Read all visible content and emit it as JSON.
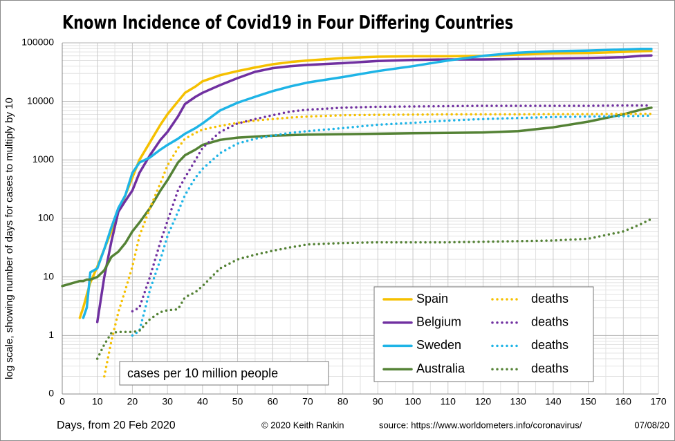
{
  "chart_data": {
    "type": "line",
    "title": "Known Incidence of Covid19 in Four Differing Countries",
    "y_label": "log scale, showing number of days for cases to multiply by 10",
    "x_label": "Days, from 20 Feb 2020",
    "annotation": "cases per 10 million people",
    "credit": "© 2020  Keith Rankin",
    "source": "source:  https://www.worldometers.info/coronavirus/",
    "date": "07/08/20",
    "log_y": true,
    "grid": true,
    "legend": "lower right",
    "xlim": [
      0,
      170
    ],
    "xticks": [
      0,
      10,
      20,
      30,
      40,
      50,
      60,
      70,
      80,
      90,
      100,
      110,
      120,
      130,
      140,
      150,
      160,
      170
    ],
    "ylim": [
      0.1,
      100000
    ],
    "yticks": [
      {
        "value": 0.1,
        "label": "0"
      },
      1,
      10,
      100,
      1000,
      10000,
      100000
    ],
    "x": [
      0,
      5,
      6,
      7,
      8,
      10,
      12,
      14,
      16,
      18,
      20,
      22,
      25,
      28,
      30,
      33,
      35,
      38,
      40,
      45,
      50,
      55,
      60,
      65,
      70,
      80,
      90,
      100,
      110,
      120,
      130,
      140,
      150,
      160,
      165,
      168
    ],
    "series": [
      {
        "name": "Spain",
        "color": "#f5c000",
        "dash": "solid",
        "values": [
          null,
          2,
          3,
          5,
          8,
          15,
          30,
          60,
          130,
          250,
          500,
          1000,
          2000,
          4000,
          6000,
          10000,
          14000,
          18000,
          22000,
          28000,
          33000,
          38000,
          43000,
          47000,
          50000,
          55000,
          58000,
          59000,
          59000,
          60000,
          63000,
          66000,
          67000,
          70000,
          72000,
          73000
        ]
      },
      {
        "name": "Belgium",
        "color": "#7030a0",
        "dash": "solid",
        "values": [
          null,
          null,
          null,
          null,
          null,
          1.7,
          10,
          40,
          130,
          200,
          300,
          600,
          1200,
          2200,
          3000,
          5500,
          9000,
          12000,
          14000,
          19000,
          25000,
          32000,
          37000,
          40000,
          42000,
          45000,
          49000,
          51000,
          52000,
          52000,
          53000,
          54000,
          55000,
          57000,
          60000,
          61000
        ]
      },
      {
        "name": "Sweden",
        "color": "#1eb4e6",
        "dash": "solid",
        "values": [
          null,
          null,
          2,
          3,
          12,
          14,
          30,
          70,
          150,
          250,
          600,
          900,
          1100,
          1500,
          1800,
          2300,
          2800,
          3500,
          4200,
          7000,
          9500,
          12000,
          15000,
          18000,
          21000,
          26000,
          33000,
          40000,
          50000,
          60000,
          68000,
          72000,
          74000,
          77000,
          79000,
          79000
        ]
      },
      {
        "name": "Australia",
        "color": "#548235",
        "dash": "solid",
        "values": [
          7,
          8.5,
          8.5,
          9,
          9,
          10,
          13,
          22,
          27,
          38,
          60,
          85,
          150,
          300,
          450,
          900,
          1200,
          1500,
          1800,
          2200,
          2400,
          2500,
          2600,
          2650,
          2700,
          2750,
          2800,
          2850,
          2900,
          2950,
          3100,
          3600,
          4500,
          6000,
          7200,
          7800
        ]
      },
      {
        "name": "deaths",
        "color": "#f5c000",
        "dash": "dotted",
        "values": [
          null,
          null,
          null,
          null,
          null,
          null,
          0.2,
          0.8,
          2.5,
          6,
          15,
          50,
          150,
          400,
          800,
          1600,
          2300,
          2900,
          3300,
          3800,
          4300,
          4700,
          5000,
          5300,
          5500,
          5800,
          5900,
          5950,
          6000,
          6000,
          6000,
          6050,
          6050,
          6100,
          6100,
          6100
        ]
      },
      {
        "name": "deaths",
        "color": "#7030a0",
        "dash": "dotted",
        "values": [
          null,
          null,
          null,
          null,
          null,
          null,
          null,
          null,
          null,
          null,
          2.6,
          3,
          10,
          40,
          90,
          300,
          500,
          1000,
          1600,
          3000,
          4200,
          5000,
          5800,
          6700,
          7200,
          7800,
          8100,
          8200,
          8300,
          8400,
          8400,
          8400,
          8400,
          8500,
          8500,
          8500
        ]
      },
      {
        "name": "deaths",
        "color": "#1eb4e6",
        "dash": "dotted",
        "values": [
          null,
          null,
          null,
          null,
          null,
          null,
          null,
          null,
          null,
          null,
          1,
          1.2,
          6,
          20,
          50,
          130,
          250,
          500,
          700,
          1300,
          1900,
          2300,
          2600,
          2900,
          3100,
          3500,
          4000,
          4300,
          4700,
          5000,
          5200,
          5400,
          5500,
          5600,
          5650,
          5700
        ]
      },
      {
        "name": "deaths",
        "color": "#548235",
        "dash": "dotted",
        "values": [
          null,
          null,
          null,
          null,
          null,
          0.4,
          0.7,
          1.1,
          1.15,
          1.15,
          1.15,
          1.2,
          1.9,
          2.5,
          2.7,
          2.8,
          4.5,
          5.5,
          7,
          14,
          20,
          24,
          28,
          32,
          36,
          38,
          39,
          39,
          39,
          40,
          41,
          42,
          45,
          60,
          80,
          98
        ]
      }
    ]
  }
}
